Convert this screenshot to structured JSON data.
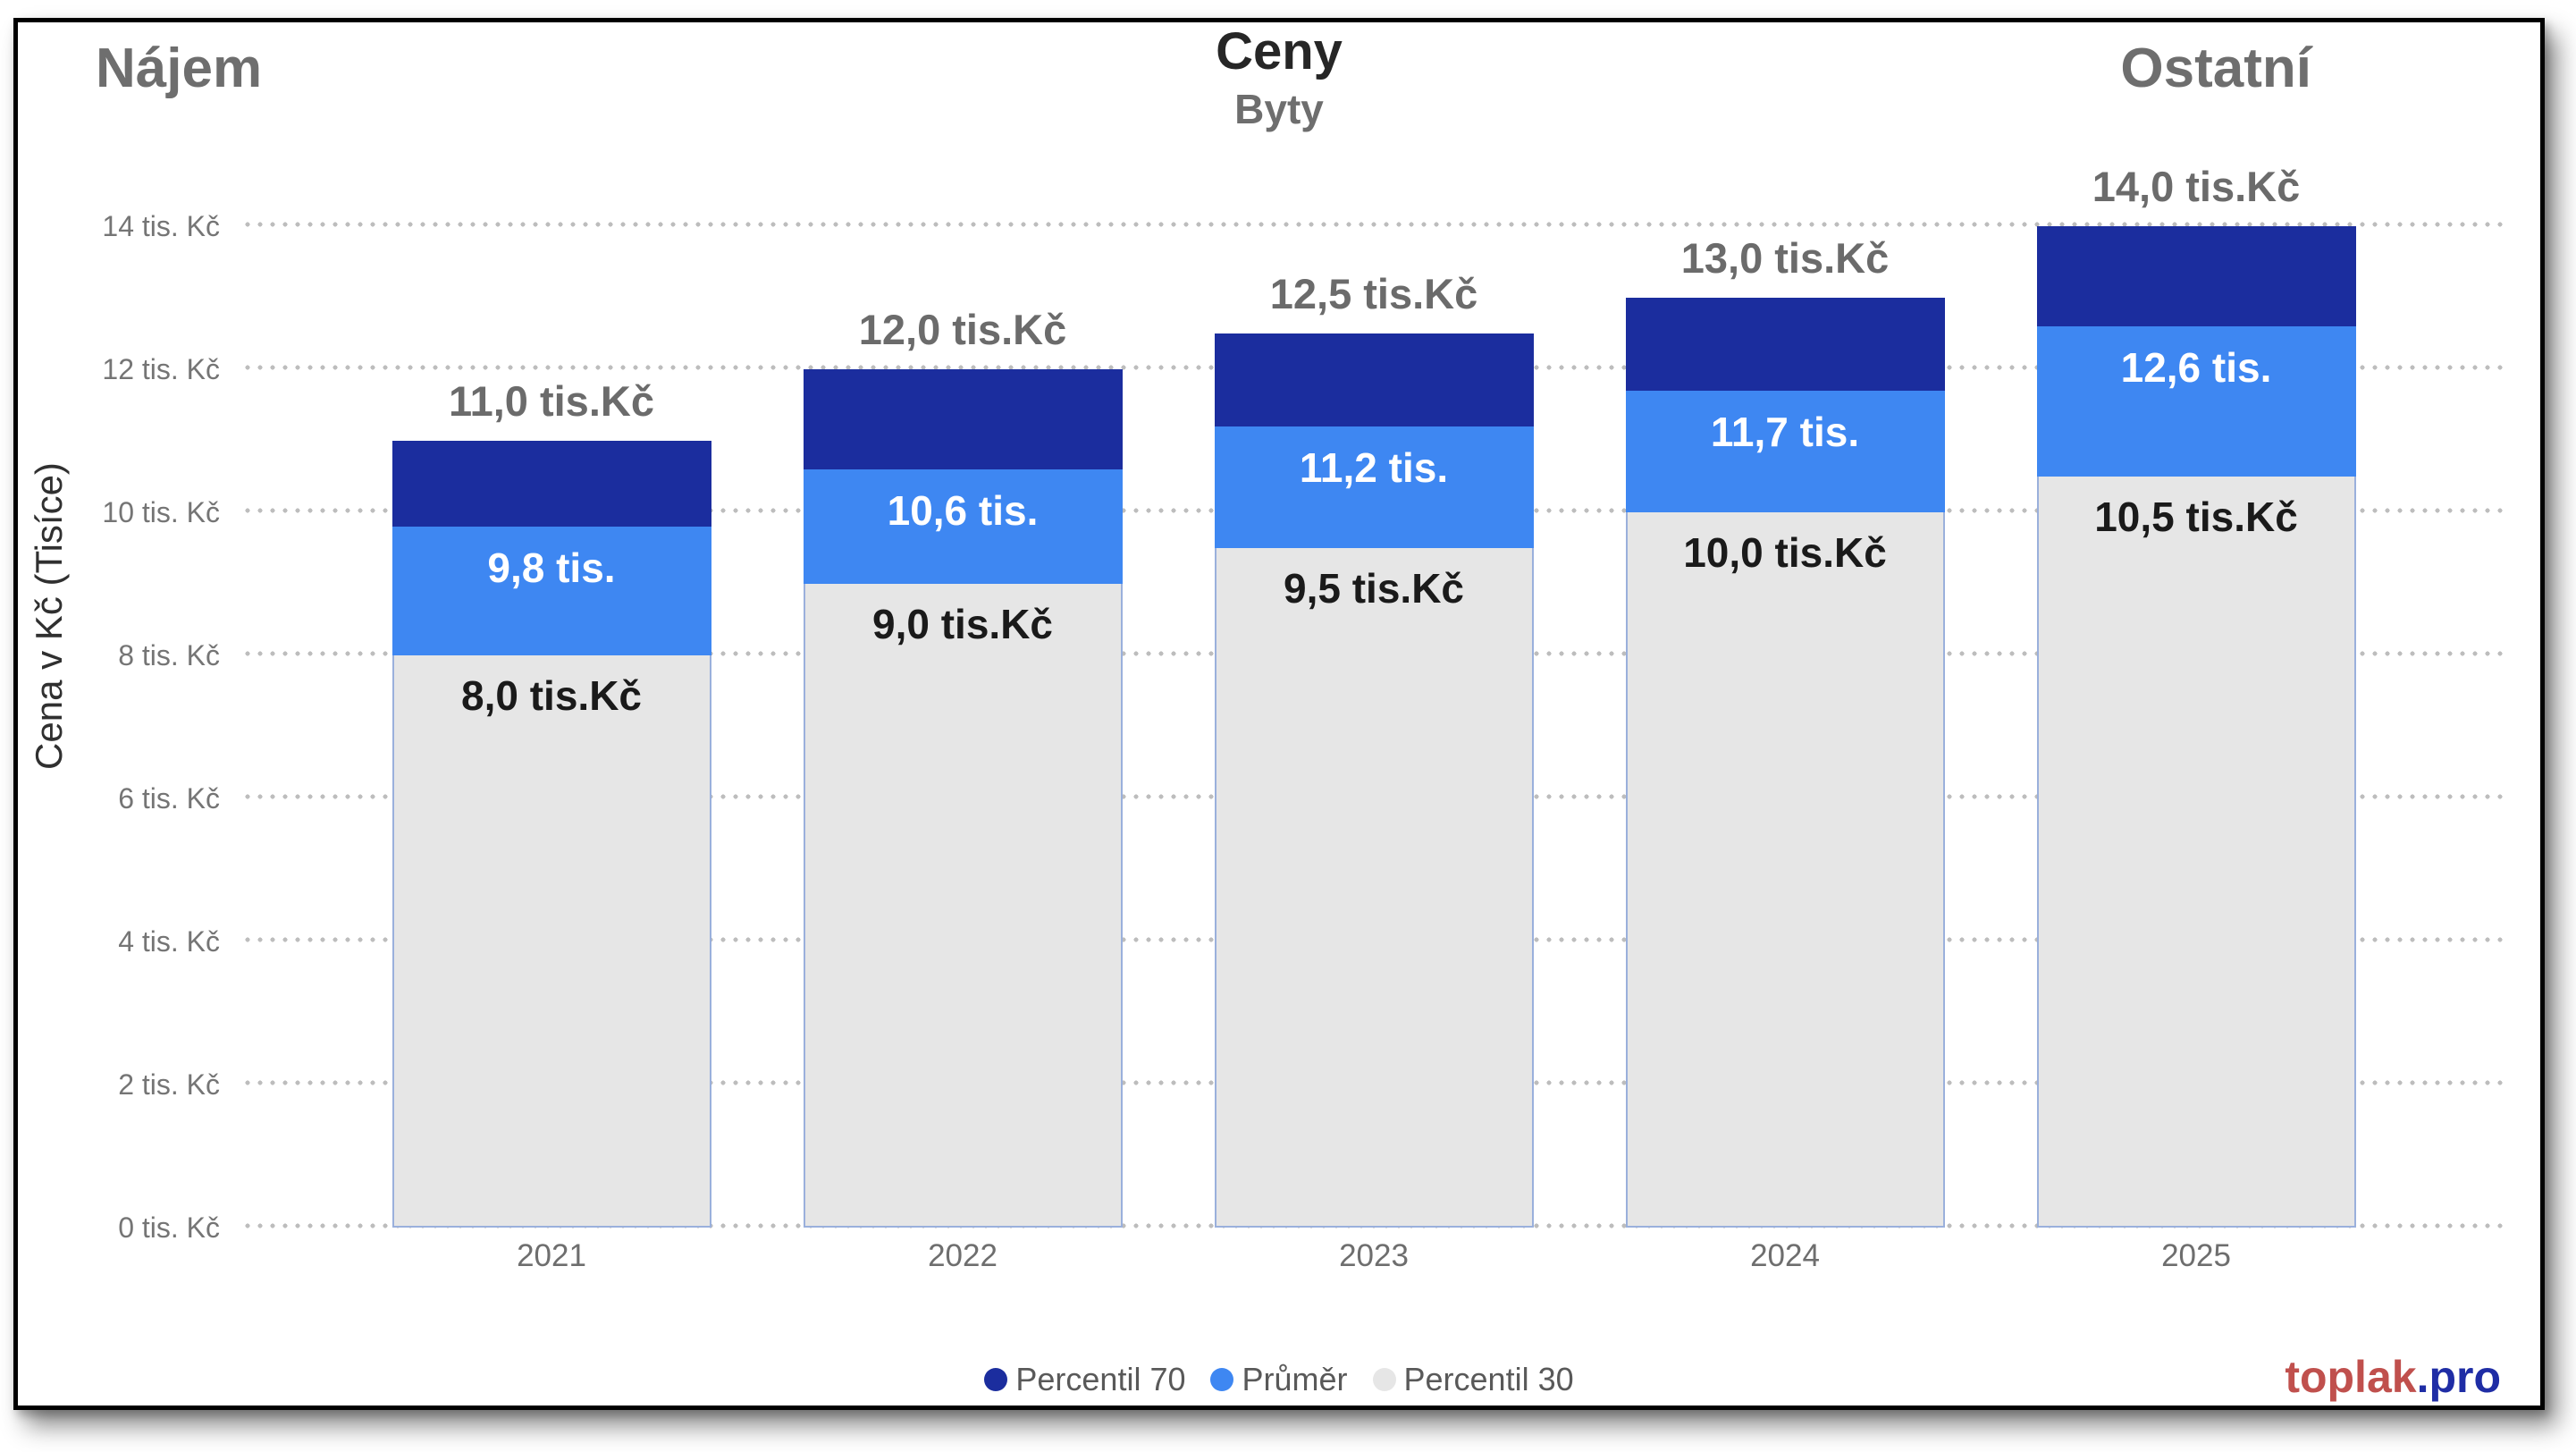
{
  "header": {
    "left_title": "Nájem",
    "center_title": "Ceny",
    "center_subtitle": "Byty",
    "right_title": "Ostatní"
  },
  "chart_data": {
    "type": "bar",
    "title": "Ceny",
    "subtitle": "Byty",
    "categories": [
      "2021",
      "2022",
      "2023",
      "2024",
      "2025"
    ],
    "series": [
      {
        "name": "Percentil 70",
        "color": "#1b2d9e",
        "values": [
          11.0,
          12.0,
          12.5,
          13.0,
          14.0
        ],
        "labels": [
          "11,0 tis.Kč",
          "12,0 tis.Kč",
          "12,5 tis.Kč",
          "13,0 tis.Kč",
          "14,0 tis.Kč"
        ]
      },
      {
        "name": "Průměr",
        "color": "#3e87f2",
        "values": [
          9.8,
          10.6,
          11.2,
          11.7,
          12.6
        ],
        "labels": [
          "9,8 tis.",
          "10,6 tis.",
          "11,2 tis.",
          "11,7 tis.",
          "12,6 tis."
        ]
      },
      {
        "name": "Percentil 30",
        "color": "#e6e6e6",
        "values": [
          8.0,
          9.0,
          9.5,
          10.0,
          10.5
        ],
        "labels": [
          "8,0 tis.Kč",
          "9,0 tis.Kč",
          "9,5 tis.Kč",
          "10,0 tis.Kč",
          "10,5 tis.Kč"
        ]
      }
    ],
    "ylabel": "Cena v Kč (Tisíce)",
    "xlabel": "",
    "ylim": [
      0,
      14
    ],
    "y_ticks": [
      "0 tis. Kč",
      "2 tis. Kč",
      "4 tis. Kč",
      "6 tis. Kč",
      "8 tis. Kč",
      "10 tis. Kč",
      "12 tis. Kč",
      "14 tis. Kč"
    ],
    "grid": "dotted-horizontal",
    "legend_position": "bottom-center"
  },
  "footer": {
    "legend": [
      {
        "label": "Percentil 70",
        "color": "#1b2d9e"
      },
      {
        "label": "Průměr",
        "color": "#3e87f2"
      },
      {
        "label": "Percentil 30",
        "color": "#e6e6e6"
      }
    ],
    "logo": {
      "part1": "toplak",
      "part2": ".pro",
      "part1_color": "#c0504d",
      "part2_color": "#1f2da5"
    }
  }
}
